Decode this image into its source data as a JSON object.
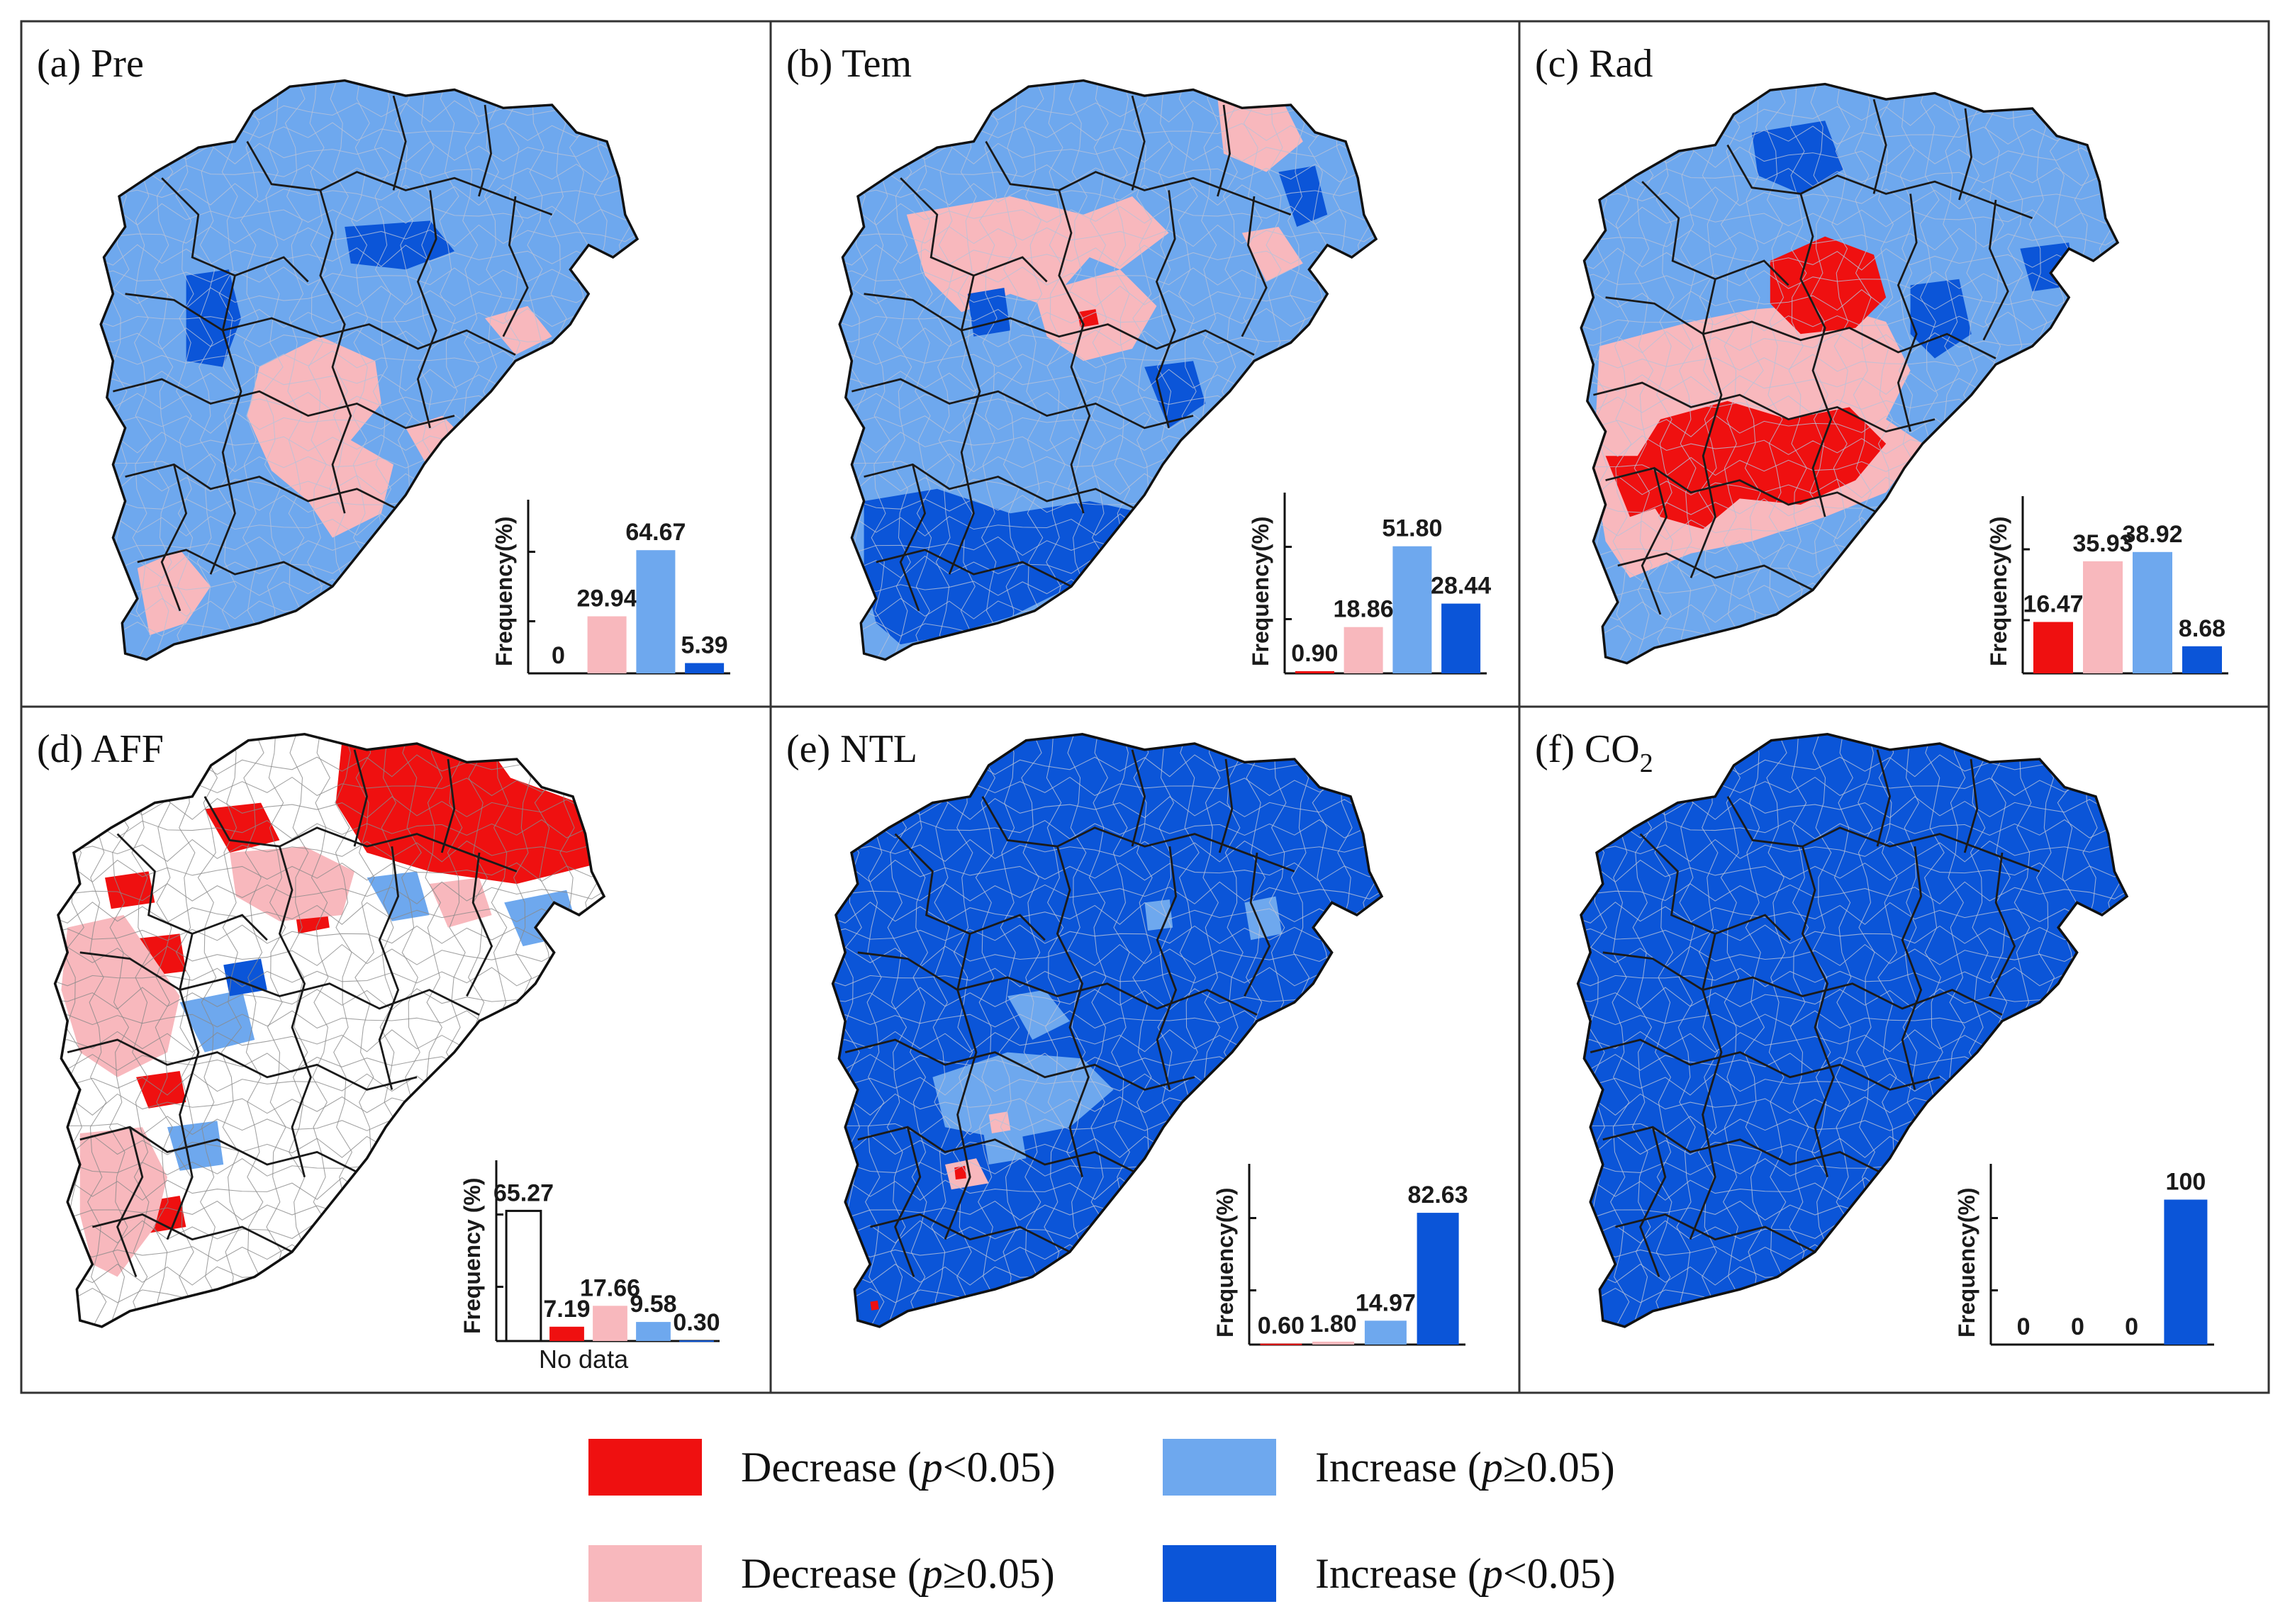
{
  "colors": {
    "decrease_sig": "#ef1010",
    "decrease_nonsig": "#f8b8bd",
    "increase_nonsig": "#6ea8ee",
    "increase_sig": "#0b55d8",
    "no_data": "#ffffff",
    "border": "#222222"
  },
  "legend": [
    {
      "key": "decrease_sig",
      "text": "Decrease (",
      "p": "p",
      "cond": "<0.05)"
    },
    {
      "key": "increase_nonsig",
      "text": "Increase (",
      "p": "p",
      "cond": "≥0.05)"
    },
    {
      "key": "decrease_nonsig",
      "text": "Decrease (",
      "p": "p",
      "cond": "≥0.05)"
    },
    {
      "key": "increase_sig",
      "text": "Increase (",
      "p": "p",
      "cond": "<0.05)"
    }
  ],
  "panels": [
    {
      "id": "a",
      "title": "(a) Pre",
      "base_fill": "increase_nonsig",
      "style": "a"
    },
    {
      "id": "b",
      "title": "(b) Tem",
      "base_fill": "increase_nonsig",
      "style": "b"
    },
    {
      "id": "c",
      "title": "(c) Rad",
      "base_fill": "increase_nonsig",
      "style": "c"
    },
    {
      "id": "d",
      "title": "(d) AFF",
      "base_fill": "no_data",
      "style": "d"
    },
    {
      "id": "e",
      "title": "(e) NTL",
      "base_fill": "increase_sig",
      "style": "e"
    },
    {
      "id": "f",
      "title": "(f) CO",
      "title_sub": "2",
      "base_fill": "increase_sig",
      "style": "f"
    }
  ],
  "chart_data": [
    {
      "panel": "a",
      "type": "bar",
      "ylabel": "Frequency(%)",
      "categories": [
        "Decrease (p<0.05)",
        "Decrease (p≥0.05)",
        "Increase (p≥0.05)",
        "Increase (p<0.05)"
      ],
      "values": [
        0,
        29.94,
        64.67,
        5.39
      ],
      "labels": [
        "0",
        "29.94",
        "64.67",
        "5.39"
      ],
      "ylim": [
        0,
        80
      ]
    },
    {
      "panel": "b",
      "type": "bar",
      "ylabel": "Frequency(%)",
      "categories": [
        "Decrease (p<0.05)",
        "Decrease (p≥0.05)",
        "Increase (p≥0.05)",
        "Increase (p<0.05)"
      ],
      "values": [
        0.9,
        18.86,
        51.8,
        28.44
      ],
      "labels": [
        "0.90",
        "18.86",
        "51.80",
        "28.44"
      ],
      "ylim": [
        0,
        65
      ]
    },
    {
      "panel": "c",
      "type": "bar",
      "ylabel": "Frequency(%)",
      "categories": [
        "Decrease (p<0.05)",
        "Decrease (p≥0.05)",
        "Increase (p≥0.05)",
        "Increase (p<0.05)"
      ],
      "values": [
        16.47,
        35.93,
        38.92,
        8.68
      ],
      "labels": [
        "16.47",
        "35.93",
        "38.92",
        "8.68"
      ],
      "ylim": [
        0,
        50
      ]
    },
    {
      "panel": "d",
      "type": "bar",
      "ylabel": "Frequency (%)",
      "xlabel": "No data",
      "categories": [
        "No data",
        "Decrease (p<0.05)",
        "Decrease (p≥0.05)",
        "Increase (p≥0.05)",
        "Increase (p<0.05)"
      ],
      "values": [
        65.27,
        7.19,
        17.66,
        9.58,
        0.3
      ],
      "labels": [
        "65.27",
        "7.19",
        "17.66",
        "9.58",
        "0.30"
      ],
      "ylim": [
        0,
        80
      ]
    },
    {
      "panel": "e",
      "type": "bar",
      "ylabel": "Frequency(%)",
      "categories": [
        "Decrease (p<0.05)",
        "Decrease (p≥0.05)",
        "Increase (p≥0.05)",
        "Increase (p<0.05)"
      ],
      "values": [
        0.6,
        1.8,
        14.97,
        82.63
      ],
      "labels": [
        "0.60",
        "1.80",
        "14.97",
        "82.63"
      ],
      "ylim": [
        0,
        100
      ]
    },
    {
      "panel": "f",
      "type": "bar",
      "ylabel": "Frequency(%)",
      "categories": [
        "Decrease (p<0.05)",
        "Decrease (p≥0.05)",
        "Increase (p≥0.05)",
        "Increase (p<0.05)"
      ],
      "values": [
        0,
        0,
        0,
        100
      ],
      "labels": [
        "0",
        "0",
        "0",
        "100"
      ],
      "ylim": [
        0,
        110
      ]
    }
  ]
}
